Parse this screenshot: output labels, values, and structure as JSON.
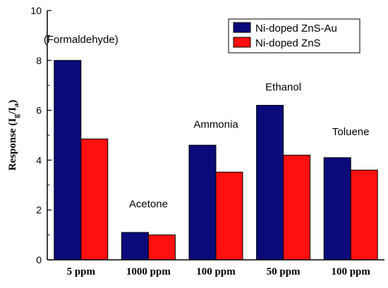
{
  "chart_data": {
    "type": "bar",
    "categories": [
      "5 ppm",
      "1000 ppm",
      "100 ppm",
      "50 ppm",
      "100 ppm"
    ],
    "series": [
      {
        "name": "Ni-doped ZnS-Au",
        "color": "#0a0a7a",
        "values": [
          8.0,
          1.1,
          4.6,
          6.2,
          4.1
        ]
      },
      {
        "name": "Ni-doped ZnS",
        "color": "#ff0f0f",
        "values": [
          4.85,
          1.0,
          3.52,
          4.2,
          3.6
        ]
      }
    ],
    "annotations": [
      "(Formaldehyde)",
      "Acetone",
      "Ammonia",
      "Ethanol",
      "Toluene"
    ],
    "ylabel": {
      "main": "Response (I",
      "sub1": "g",
      "mid": "/I",
      "sub2": "a",
      "end": ")"
    },
    "ylim": [
      0,
      10
    ],
    "yticks": [
      0,
      2,
      4,
      6,
      8,
      10
    ],
    "legend_position": "top-right",
    "grid": false
  }
}
